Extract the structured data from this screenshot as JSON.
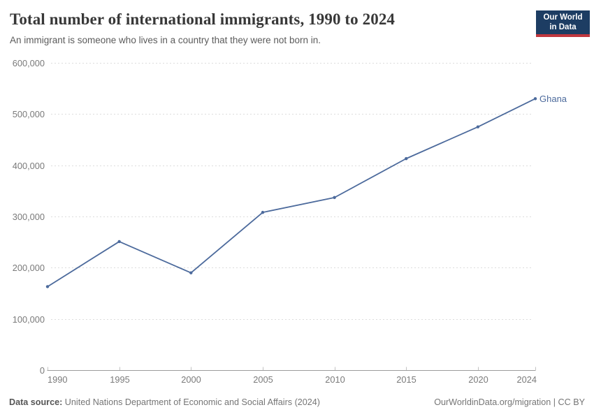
{
  "logo": {
    "line1": "Our World",
    "line2": "in Data"
  },
  "chart_data": {
    "type": "line",
    "title": "Total number of international immigrants, 1990 to 2024",
    "subtitle": "An immigrant is someone who lives in a country that they were not born in.",
    "series": [
      {
        "name": "Ghana",
        "color": "#4c6a9c",
        "x": [
          1990,
          1995,
          2000,
          2005,
          2010,
          2015,
          2020,
          2024
        ],
        "values": [
          163000,
          251000,
          190000,
          308000,
          337000,
          413000,
          475000,
          530000
        ]
      }
    ],
    "x_ticks": [
      1990,
      1995,
      2000,
      2005,
      2010,
      2015,
      2020,
      2024
    ],
    "y_ticks": [
      0,
      100000,
      200000,
      300000,
      400000,
      500000,
      600000
    ],
    "xlim": [
      1990,
      2024
    ],
    "ylim": [
      0,
      600000
    ],
    "xlabel": "",
    "ylabel": "",
    "grid": "horizontal-dashed",
    "legend": "series-end-label"
  },
  "footer": {
    "source_label": "Data source:",
    "source_text": "United Nations Department of Economic and Social Affairs (2024)",
    "credit": "OurWorldinData.org/migration | CC BY"
  },
  "colors": {
    "line": "#4c6a9c",
    "logo_bg": "#1d3d63",
    "logo_accent": "#c0373e",
    "grid": "#dcdcdc",
    "axis": "#9c9c9c",
    "tick": "#c2c2c2",
    "tick_label": "#7a7a7a",
    "title": "#383838",
    "subtitle": "#5b5b5b",
    "footer": "#757575"
  }
}
